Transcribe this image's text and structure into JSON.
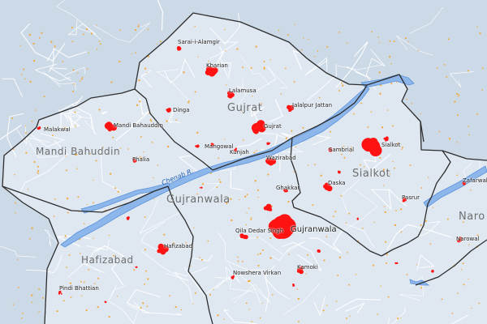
{
  "map": {
    "colors": {
      "background": "#ccd9e6",
      "land": "#dfe7f0",
      "boundary": "#2d2d2d",
      "river": "#8db6ea",
      "river_edge": "#5b93dd",
      "urban": "#ff1212",
      "roads": "#ffffff",
      "settlements": "#f2a93b"
    },
    "districts": [
      {
        "key": "gujrat",
        "name": "Gujrat"
      },
      {
        "key": "mandi",
        "name": "Mandi Bahuddin"
      },
      {
        "key": "sialkot",
        "name": "Sialkot"
      },
      {
        "key": "gujranwala",
        "name": "Gujranwala"
      },
      {
        "key": "hafizabad",
        "name": "Hafizabad"
      },
      {
        "key": "narowal",
        "name": "Naro"
      }
    ],
    "river": {
      "name": "Chenab R."
    },
    "cities": [
      {
        "key": "sarai_alamgir",
        "name": "Sarai-i-Alamgir"
      },
      {
        "key": "kharian",
        "name": "Kharian"
      },
      {
        "key": "lalamusa",
        "name": "Lalamusa"
      },
      {
        "key": "jalalpur_jattan",
        "name": "Jalalpur Jattan"
      },
      {
        "key": "dinga",
        "name": "Dinga"
      },
      {
        "key": "gujrat_city",
        "name": "Gujrat"
      },
      {
        "key": "mangowal",
        "name": "Mangowal"
      },
      {
        "key": "kunjah",
        "name": "Kunjah"
      },
      {
        "key": "malakwal",
        "name": "Malakwal"
      },
      {
        "key": "mandi_city",
        "name": "Mandi Bahauddin"
      },
      {
        "key": "phalia",
        "name": "Phalia"
      },
      {
        "key": "wazirabad",
        "name": "Wazirabad"
      },
      {
        "key": "ghakkar",
        "name": "Ghakkar"
      },
      {
        "key": "gujranwala_city",
        "name": "Gujranwala"
      },
      {
        "key": "qila_didar",
        "name": "Qila Dedar Singh"
      },
      {
        "key": "nowshera",
        "name": "Nowshera Virkan"
      },
      {
        "key": "kamoki",
        "name": "Kamoki"
      },
      {
        "key": "hafizabad_city",
        "name": "Hafizabad"
      },
      {
        "key": "pindi_bhattian",
        "name": "Pindi Bhattian"
      },
      {
        "key": "sambrial",
        "name": "Sambrial"
      },
      {
        "key": "sialkot_city",
        "name": "Sialkot"
      },
      {
        "key": "daska",
        "name": "Daska"
      },
      {
        "key": "pasrur",
        "name": "Pasrur"
      },
      {
        "key": "zafarwal",
        "name": "Zafarwal"
      },
      {
        "key": "narowal_city",
        "name": "Narowal"
      }
    ]
  }
}
